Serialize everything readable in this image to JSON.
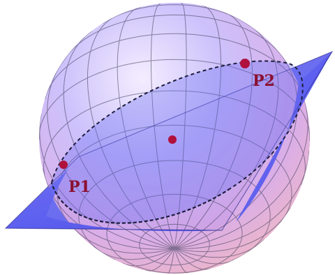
{
  "diagram": {
    "points": [
      {
        "id": "P1",
        "label": "P1"
      },
      {
        "id": "P2",
        "label": "P2"
      },
      {
        "id": "center",
        "label": ""
      }
    ],
    "colors": {
      "point": "#b0103c",
      "label": "#8a1030",
      "plane": "#5a5cf0",
      "plane_edge": "#2a2a8a",
      "grid": "#3a3a55",
      "sphere_top": "#c8c0ff",
      "sphere_bottom": "#ffb6b9"
    }
  }
}
